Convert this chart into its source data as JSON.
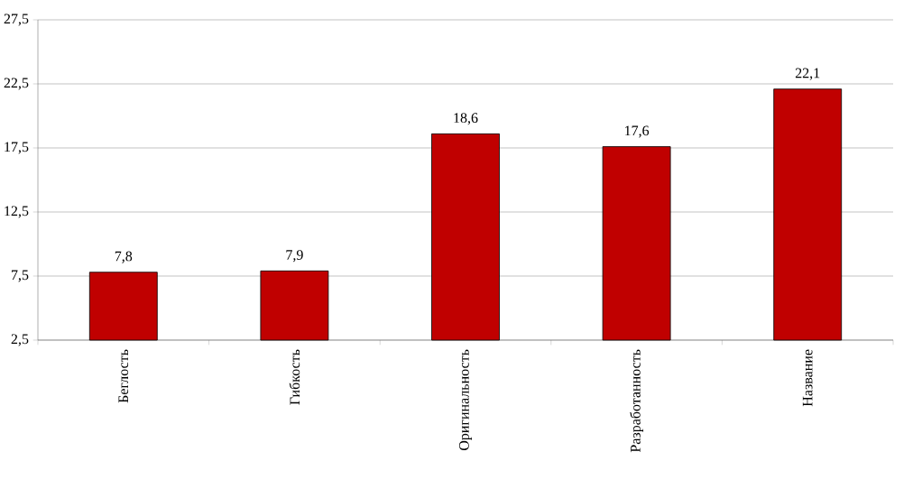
{
  "chart_data": {
    "type": "bar",
    "categories": [
      "Беглость",
      "Гибкость",
      "Оригинальность",
      "Разработанность",
      "Название"
    ],
    "values": [
      7.8,
      7.9,
      18.6,
      17.6,
      22.1
    ],
    "value_labels": [
      "7,8",
      "7,9",
      "18,6",
      "17,6",
      "22,1"
    ],
    "color": "#c00000",
    "ylim": [
      2.5,
      27.5
    ],
    "yticks": [
      {
        "value": 2.5,
        "label": "2,5"
      },
      {
        "value": 7.5,
        "label": "7,5"
      },
      {
        "value": 12.5,
        "label": "12,5"
      },
      {
        "value": 17.5,
        "label": "17,5"
      },
      {
        "value": 22.5,
        "label": "22,5"
      },
      {
        "value": 27.5,
        "label": "27,5"
      }
    ],
    "grid": "y"
  }
}
